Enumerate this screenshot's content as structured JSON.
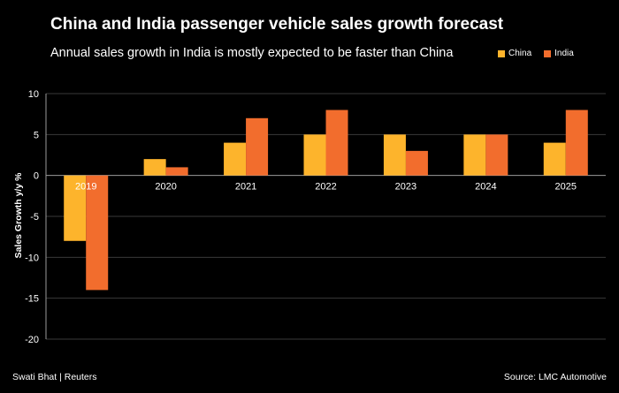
{
  "title": "China and India passenger vehicle sales growth forecast",
  "subtitle": "Annual sales growth in India is mostly expected to be faster than China",
  "footer": {
    "credit": "Swati Bhat | Reuters",
    "source": "Source: LMC Automotive"
  },
  "colors": {
    "china": "#FDB42C",
    "india": "#F26D2D",
    "grid": "#3a3a3a",
    "axis": "#9a9a9a",
    "text": "#ffffff"
  },
  "chart_data": {
    "type": "bar",
    "categories": [
      "2019",
      "2020",
      "2021",
      "2022",
      "2023",
      "2024",
      "2025"
    ],
    "series": [
      {
        "name": "China",
        "values": [
          -8,
          2,
          4,
          5,
          5,
          5,
          4
        ]
      },
      {
        "name": "India",
        "values": [
          -14,
          1,
          7,
          8,
          3,
          5,
          8
        ]
      }
    ],
    "ylabel": "Sales Growth y/y %",
    "xlabel": "",
    "ylim": [
      -20,
      10
    ],
    "yticks": [
      10,
      5,
      0,
      -5,
      -10,
      -15,
      -20
    ],
    "legend_position": "top-right",
    "grid": true
  }
}
